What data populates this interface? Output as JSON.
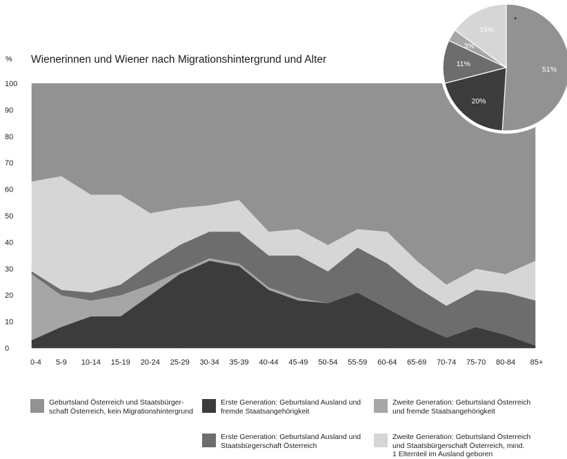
{
  "chart_data": [
    {
      "type": "area",
      "title": "Wienerinnen und Wiener nach Migrationshintergrund und Alter",
      "ylabel": "%",
      "ylim": [
        0,
        100
      ],
      "yticks": [
        "0",
        "10",
        "20",
        "30",
        "40",
        "50",
        "60",
        "70",
        "80",
        "90",
        "100"
      ],
      "stacked": true,
      "grid": false,
      "legend_position": "bottom",
      "categories": [
        "0-4",
        "5-9",
        "10-14",
        "15-19",
        "20-24",
        "25-29",
        "30-34",
        "35-39",
        "40-44",
        "45-49",
        "50-54",
        "55-59",
        "60-64",
        "65-69",
        "70-74",
        "75-70",
        "80-84",
        "85+"
      ],
      "series": [
        {
          "name": "Erste Generation: Geburtsland Ausland und fremde Staatsangehörigkeit",
          "color": "#3c3c3c",
          "values": [
            3,
            8,
            12,
            12,
            20,
            28,
            33,
            31,
            22,
            18,
            17,
            21,
            15,
            9,
            4,
            8,
            5,
            1
          ]
        },
        {
          "name": "Zweite Generation: Geburtsland Österreich und fremde Staatsangehörigkeit",
          "color": "#a6a6a6",
          "values": [
            25,
            12,
            6,
            8,
            4,
            1,
            1,
            1,
            1,
            1,
            0,
            0,
            0,
            0,
            0,
            0,
            0,
            0
          ]
        },
        {
          "name": "Erste Generation: Geburtsland Ausland und Staatsbürgerschaft Österreich",
          "color": "#6d6d6d",
          "values": [
            1,
            2,
            3,
            4,
            8,
            10,
            10,
            12,
            12,
            16,
            12,
            17,
            17,
            14,
            12,
            14,
            16,
            17
          ]
        },
        {
          "name": "Zweite Generation: Geburtsland Österreich und Staatsbürgerschaft Österreich, mind. 1 Elternteil im Ausland geboren",
          "color": "#d6d6d6",
          "values": [
            34,
            43,
            37,
            34,
            19,
            14,
            10,
            12,
            9,
            10,
            10,
            7,
            12,
            10,
            8,
            8,
            7,
            15
          ]
        },
        {
          "name": "Geburtsland Österreich und Staatsbürgerschaft Österreich, kein Migrationshintergrund",
          "color": "#929292",
          "values": [
            37,
            35,
            42,
            42,
            49,
            47,
            46,
            44,
            56,
            55,
            61,
            55,
            56,
            67,
            76,
            70,
            72,
            67
          ]
        }
      ]
    },
    {
      "type": "pie",
      "annotation": "*",
      "slices": [
        {
          "label": "51%",
          "value": 51,
          "color": "#929292"
        },
        {
          "label": "20%",
          "value": 20,
          "color": "#3c3c3c"
        },
        {
          "label": "11%",
          "value": 11,
          "color": "#6d6d6d"
        },
        {
          "label": "3%",
          "value": 3,
          "color": "#a6a6a6"
        },
        {
          "label": "15%",
          "value": 15,
          "color": "#d6d6d6"
        }
      ]
    }
  ],
  "legend": [
    {
      "text": "Geburtsland Österreich und Staatsbürger-\nschaft Österreich, kein Migrationshintergrund",
      "color": "#929292"
    },
    {
      "text": "Erste Generation: Geburtsland Ausland und\nfremde Staatsangehörigkeit",
      "color": "#3c3c3c"
    },
    {
      "text": "Zweite Generation: Geburtsland Österreich\nund fremde Staatsangehörigkeit",
      "color": "#a6a6a6"
    },
    {
      "text": "Erste Generation: Geburtsland Ausland und\nStaatsbürgerschaft Österreich",
      "color": "#6d6d6d"
    },
    {
      "text": "Zweite Generation: Geburtsland Österreich\nund Staatsbürgerschaft Österreich, mind.\n1 Elternteil im Ausland geboren",
      "color": "#d6d6d6"
    }
  ]
}
